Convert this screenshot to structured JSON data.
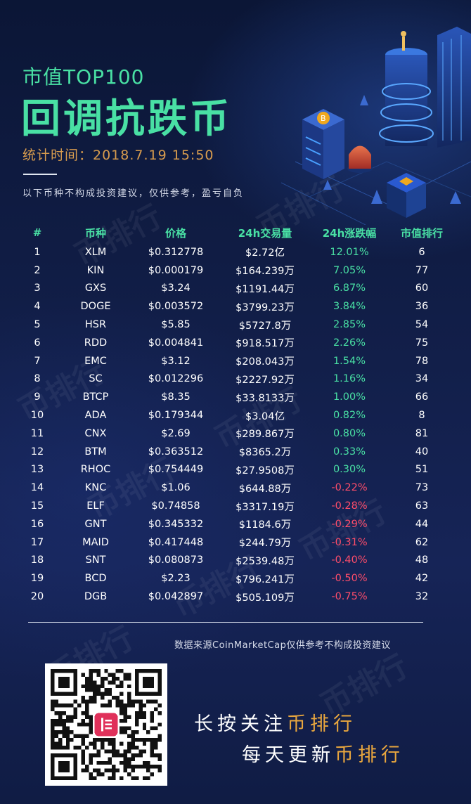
{
  "header": {
    "title_small": "市值TOP100",
    "title_big": "回调抗跌币",
    "stat_time": "统计时间：2018.7.19 15:50",
    "disclaimer": "以下币种不构成投资建议，仅供参考，盈亏自负"
  },
  "table": {
    "headers": [
      "#",
      "币种",
      "价格",
      "24h交易量",
      "24h涨跌幅",
      "市值排行"
    ],
    "rows": [
      {
        "n": "1",
        "coin": "XLM",
        "price": "$0.312778",
        "volume": "$2.72亿",
        "change": "12.01%",
        "rank": "6",
        "dir": "up"
      },
      {
        "n": "2",
        "coin": "KIN",
        "price": "$0.000179",
        "volume": "$164.239万",
        "change": "7.05%",
        "rank": "77",
        "dir": "up"
      },
      {
        "n": "3",
        "coin": "GXS",
        "price": "$3.24",
        "volume": "$1191.44万",
        "change": "6.87%",
        "rank": "60",
        "dir": "up"
      },
      {
        "n": "4",
        "coin": "DOGE",
        "price": "$0.003572",
        "volume": "$3799.23万",
        "change": "3.84%",
        "rank": "36",
        "dir": "up"
      },
      {
        "n": "5",
        "coin": "HSR",
        "price": "$5.85",
        "volume": "$5727.8万",
        "change": "2.85%",
        "rank": "54",
        "dir": "up"
      },
      {
        "n": "6",
        "coin": "RDD",
        "price": "$0.004841",
        "volume": "$918.517万",
        "change": "2.26%",
        "rank": "75",
        "dir": "up"
      },
      {
        "n": "7",
        "coin": "EMC",
        "price": "$3.12",
        "volume": "$208.043万",
        "change": "1.54%",
        "rank": "78",
        "dir": "up"
      },
      {
        "n": "8",
        "coin": "SC",
        "price": "$0.012296",
        "volume": "$2227.92万",
        "change": "1.16%",
        "rank": "34",
        "dir": "up"
      },
      {
        "n": "9",
        "coin": "BTCP",
        "price": "$8.35",
        "volume": "$33.8133万",
        "change": "1.00%",
        "rank": "66",
        "dir": "up"
      },
      {
        "n": "10",
        "coin": "ADA",
        "price": "$0.179344",
        "volume": "$3.04亿",
        "change": "0.82%",
        "rank": "8",
        "dir": "up"
      },
      {
        "n": "11",
        "coin": "CNX",
        "price": "$2.69",
        "volume": "$289.867万",
        "change": "0.80%",
        "rank": "81",
        "dir": "up"
      },
      {
        "n": "12",
        "coin": "BTM",
        "price": "$0.363512",
        "volume": "$8365.2万",
        "change": "0.33%",
        "rank": "40",
        "dir": "up"
      },
      {
        "n": "13",
        "coin": "RHOC",
        "price": "$0.754449",
        "volume": "$27.9508万",
        "change": "0.30%",
        "rank": "51",
        "dir": "up"
      },
      {
        "n": "14",
        "coin": "KNC",
        "price": "$1.06",
        "volume": "$644.88万",
        "change": "-0.22%",
        "rank": "73",
        "dir": "down"
      },
      {
        "n": "15",
        "coin": "ELF",
        "price": "$0.74858",
        "volume": "$3317.19万",
        "change": "-0.28%",
        "rank": "63",
        "dir": "down"
      },
      {
        "n": "16",
        "coin": "GNT",
        "price": "$0.345332",
        "volume": "$1184.6万",
        "change": "-0.29%",
        "rank": "44",
        "dir": "down"
      },
      {
        "n": "17",
        "coin": "MAID",
        "price": "$0.417448",
        "volume": "$244.79万",
        "change": "-0.31%",
        "rank": "62",
        "dir": "down"
      },
      {
        "n": "18",
        "coin": "SNT",
        "price": "$0.080873",
        "volume": "$2539.48万",
        "change": "-0.40%",
        "rank": "48",
        "dir": "down"
      },
      {
        "n": "19",
        "coin": "BCD",
        "price": "$2.23",
        "volume": "$796.241万",
        "change": "-0.50%",
        "rank": "42",
        "dir": "down"
      },
      {
        "n": "20",
        "coin": "DGB",
        "price": "$0.042897",
        "volume": "$505.109万",
        "change": "-0.75%",
        "rank": "32",
        "dir": "down"
      }
    ]
  },
  "footer": {
    "source": "数据来源CoinMarketCap仅供参考不构成投资建议",
    "cta1_white": "长按关注",
    "cta1_gold": "币排行",
    "cta2_white": "每天更新",
    "cta2_gold": "币排行",
    "watermark": "币排行"
  },
  "colors": {
    "accent_green": "#49e0a4",
    "accent_gold": "#e8a63e",
    "negative_red": "#ff4d6a",
    "time_orange": "#d89c4e",
    "background": "#0d1a3a"
  },
  "icons": {
    "qr": "qr-code-icon",
    "logo": "bi-paihang-logo-icon",
    "bitcoin": "bitcoin-icon"
  }
}
